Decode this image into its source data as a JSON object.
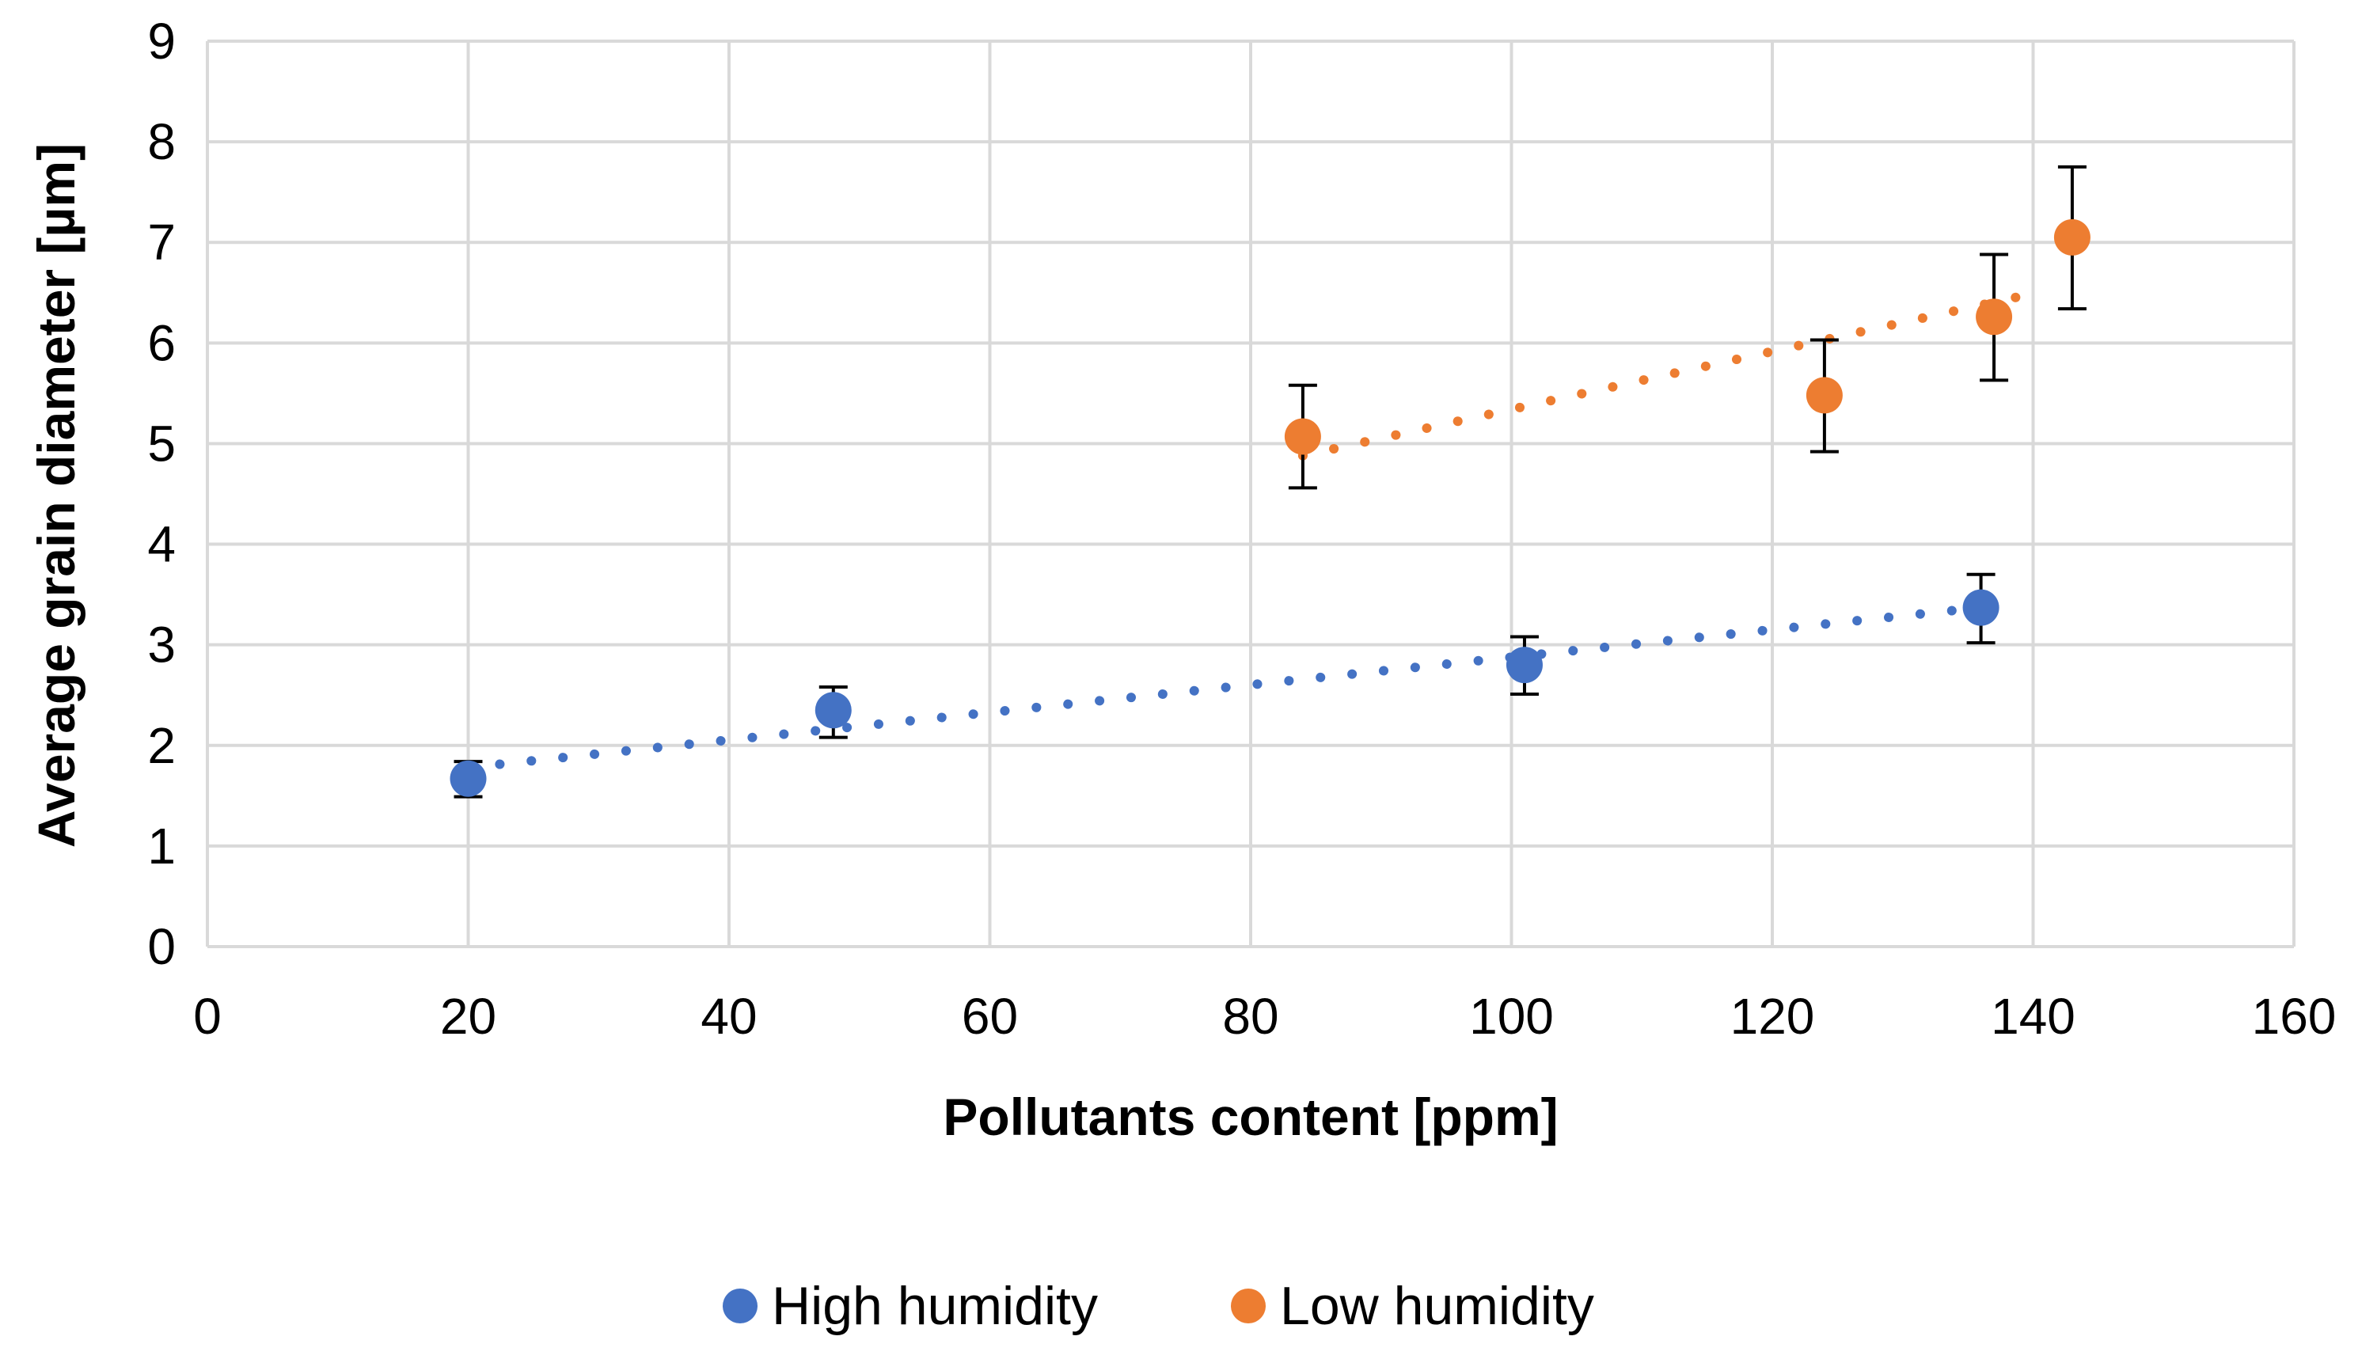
{
  "chart_data": {
    "type": "scatter",
    "title": "",
    "xlabel": "Pollutants content [ppm]",
    "ylabel": "Average grain diameter [µm]",
    "xlim": [
      0,
      160
    ],
    "ylim": [
      0,
      9
    ],
    "xticks": [
      0,
      20,
      40,
      60,
      80,
      100,
      120,
      140,
      160
    ],
    "yticks": [
      0,
      1,
      2,
      3,
      4,
      5,
      6,
      7,
      8,
      9
    ],
    "grid": true,
    "legend_position": "bottom",
    "series": [
      {
        "name": "High humidity",
        "color": "#4472C4",
        "x": [
          20,
          48,
          101,
          136
        ],
        "y": [
          1.67,
          2.35,
          2.8,
          3.37
        ],
        "error_low": [
          1.49,
          2.08,
          2.51,
          3.02
        ],
        "error_high": [
          1.84,
          2.58,
          3.08,
          3.7
        ],
        "trendline": {
          "type": "linear",
          "x": [
            20,
            136
          ],
          "y": [
            1.78,
            3.37
          ]
        }
      },
      {
        "name": "Low humidity",
        "color": "#ED7D31",
        "x": [
          84,
          124,
          137,
          143
        ],
        "y": [
          5.07,
          5.48,
          6.26,
          7.05
        ],
        "error_low": [
          4.56,
          4.92,
          5.63,
          6.34
        ],
        "error_high": [
          5.58,
          6.03,
          6.88,
          7.75
        ],
        "trendline": {
          "type": "linear",
          "x": [
            84,
            141
          ],
          "y": [
            4.88,
            6.52
          ]
        }
      }
    ]
  }
}
